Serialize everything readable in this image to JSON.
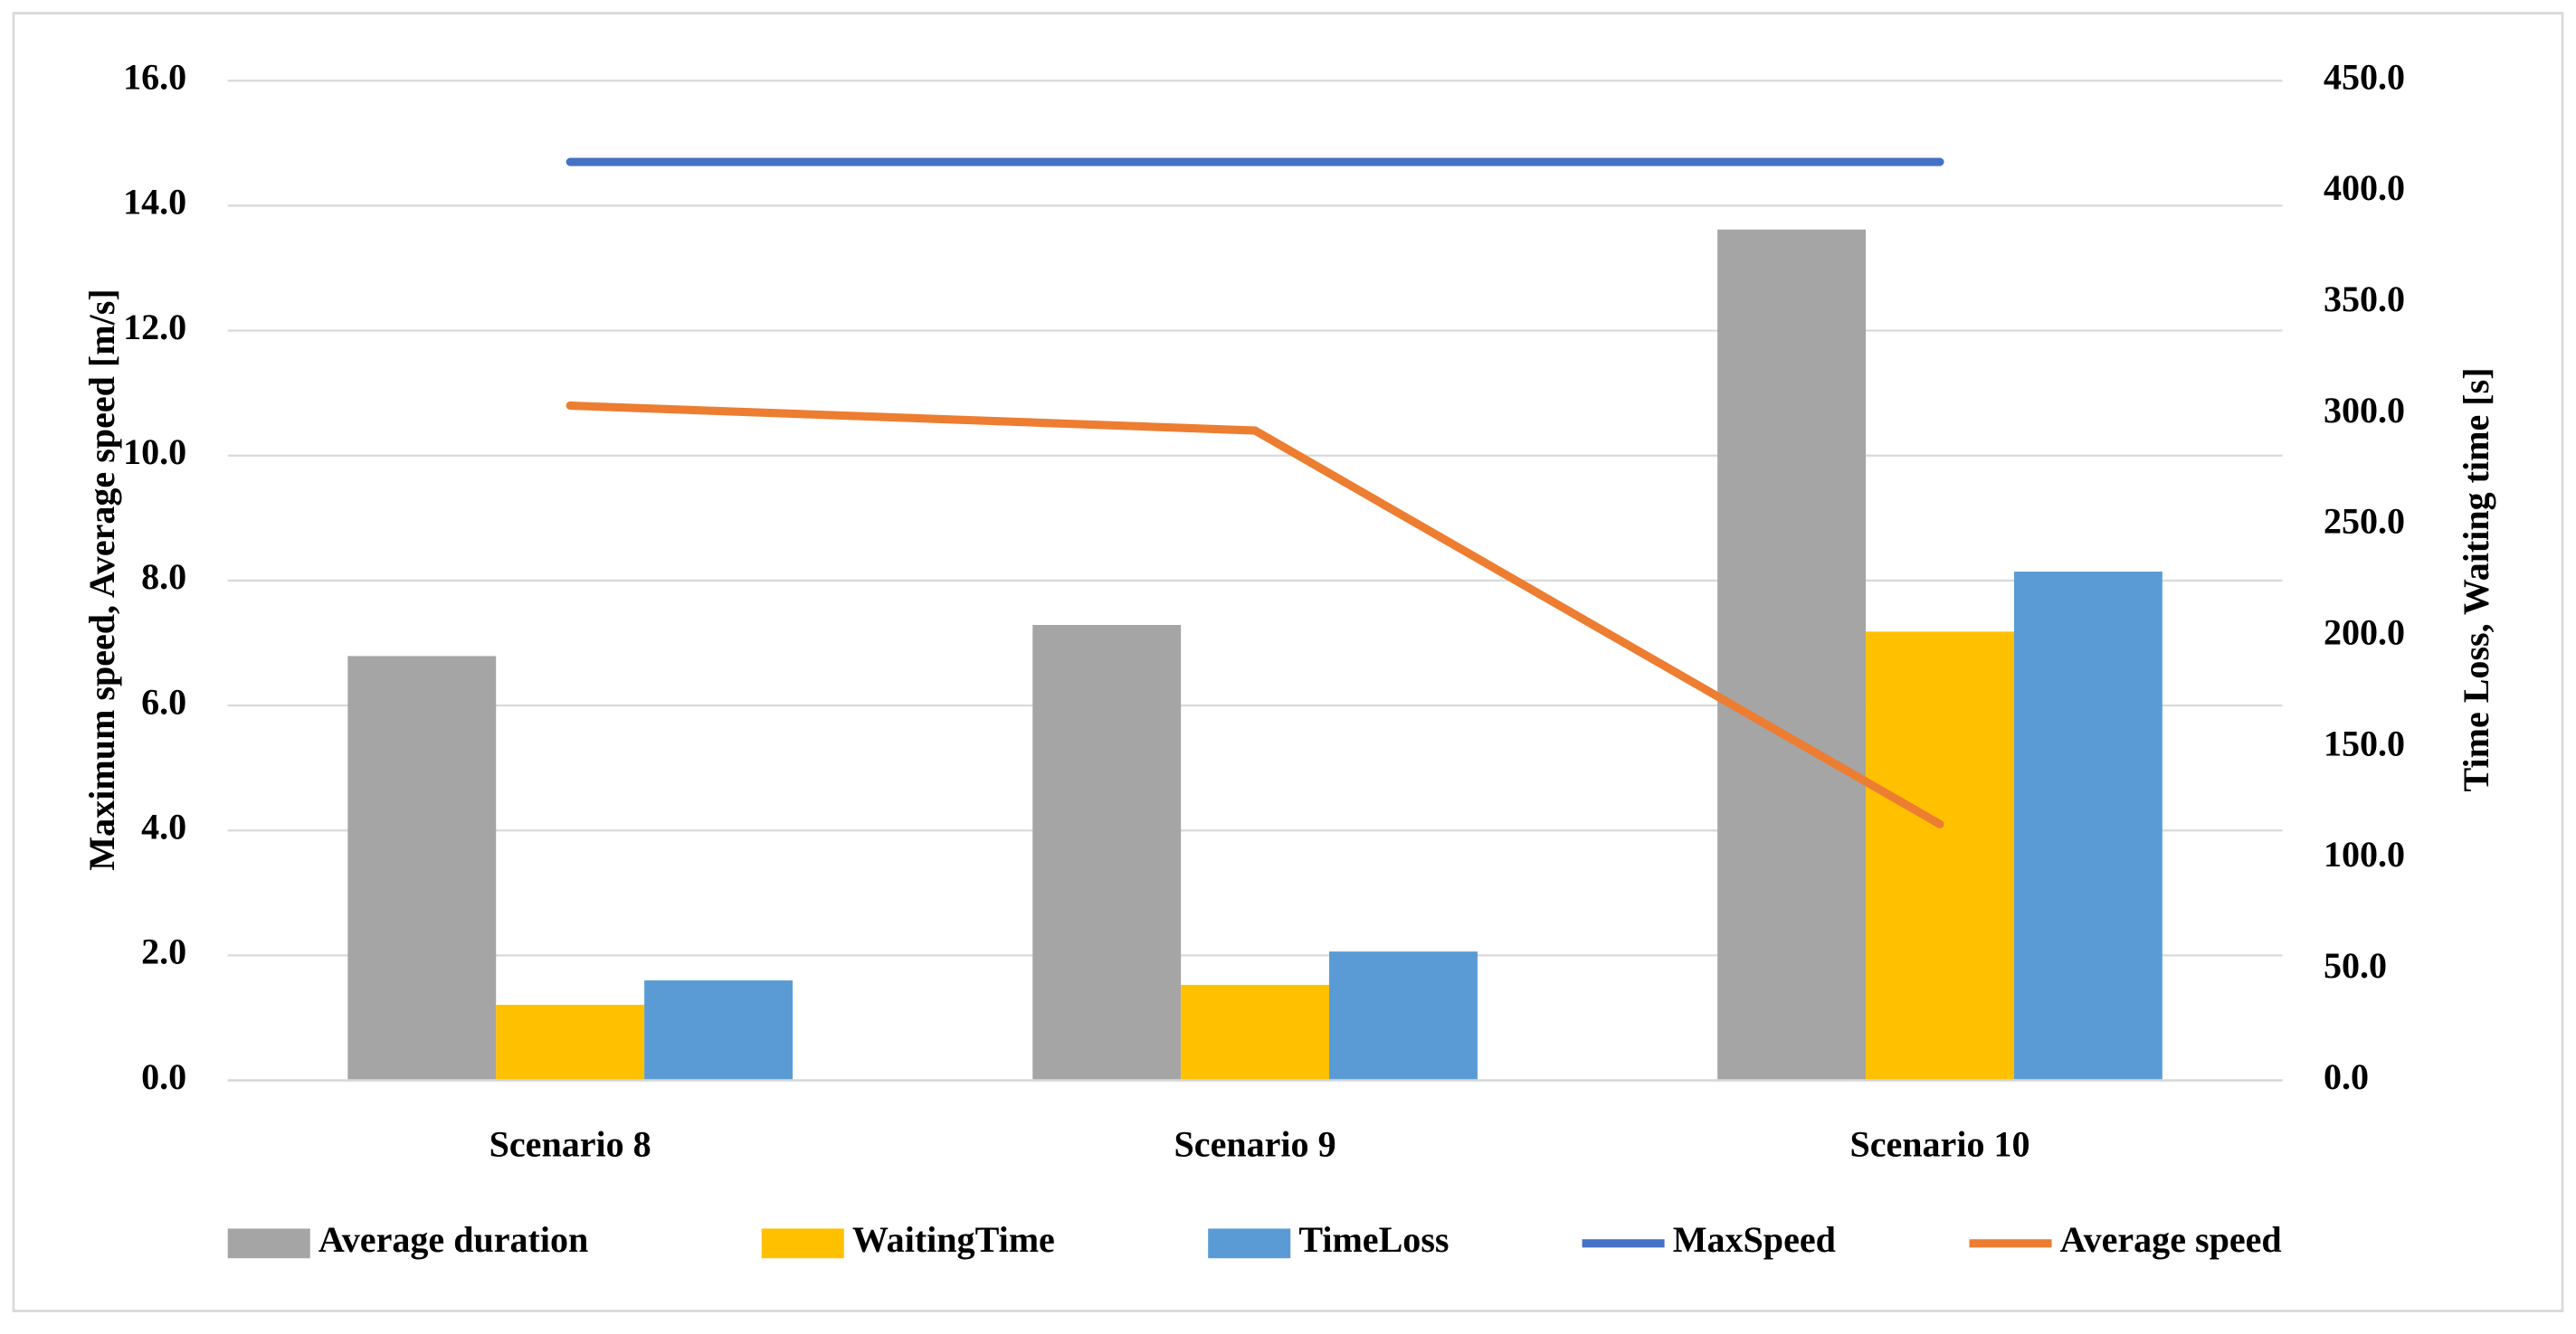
{
  "chart_data": {
    "type": "bar_line",
    "categories": [
      "Scenario 8",
      "Scenario 9",
      "Scenario 10"
    ],
    "y_label": "Maximum speed, Average speed [m/s]",
    "y2_label": "Time Loss, Waiting time [s]",
    "ylim": [
      0,
      16
    ],
    "yticks": [
      {
        "value": 0,
        "label": "0.0"
      },
      {
        "value": 2,
        "label": "2.0"
      },
      {
        "value": 4,
        "label": "4.0"
      },
      {
        "value": 6,
        "label": "6.0"
      },
      {
        "value": 8,
        "label": "8.0"
      },
      {
        "value": 10,
        "label": "10.0"
      },
      {
        "value": 12,
        "label": "12.0"
      },
      {
        "value": 14,
        "label": "14.0"
      },
      {
        "value": 16,
        "label": "16.0"
      }
    ],
    "y2lim": [
      0,
      450
    ],
    "y2ticks": [
      {
        "value": 0,
        "label": "0.0"
      },
      {
        "value": 50,
        "label": "50.0"
      },
      {
        "value": 100,
        "label": "100.0"
      },
      {
        "value": 150,
        "label": "150.0"
      },
      {
        "value": 200,
        "label": "200.0"
      },
      {
        "value": 250,
        "label": "250.0"
      },
      {
        "value": 300,
        "label": "300.0"
      },
      {
        "value": 350,
        "label": "350.0"
      },
      {
        "value": 400,
        "label": "400.0"
      },
      {
        "value": 450,
        "label": "450.0"
      }
    ],
    "grid": true,
    "legend": "bottom",
    "series": [
      {
        "name": "Average duration",
        "type": "bar",
        "axis": "y2",
        "color": "#a5a5a5",
        "values": [
          191,
          205,
          383
        ]
      },
      {
        "name": "WaitingTime",
        "type": "bar",
        "axis": "y2",
        "color": "#ffc000",
        "values": [
          34,
          43,
          202
        ]
      },
      {
        "name": "TimeLoss",
        "type": "bar",
        "axis": "y2",
        "color": "#5b9bd5",
        "values": [
          45,
          58,
          229
        ]
      },
      {
        "name": "MaxSpeed",
        "type": "line",
        "axis": "y",
        "color": "#4472c4",
        "values": [
          14.7,
          14.7,
          14.7
        ]
      },
      {
        "name": "Average speed",
        "type": "line",
        "axis": "y",
        "color": "#ed7d31",
        "values": [
          10.8,
          10.4,
          4.1
        ]
      }
    ]
  }
}
